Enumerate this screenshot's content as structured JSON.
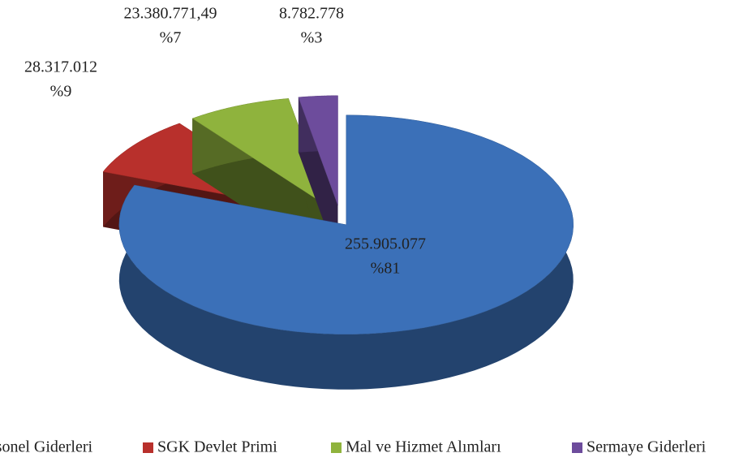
{
  "chart_data": {
    "type": "pie",
    "categories": [
      "Personel Giderleri",
      "SGK Devlet Primi",
      "Mal ve Hizmet Alımları",
      "Sermaye Giderleri"
    ],
    "values": [
      255905077,
      28317012,
      23380771.49,
      8782778
    ],
    "value_labels": [
      "255.905.077",
      "28.317.012",
      "23.380.771,49",
      "8.782.778"
    ],
    "percents": [
      81,
      9,
      7,
      3
    ],
    "percent_labels": [
      "%81",
      "%9",
      "%7",
      "%3"
    ],
    "colors": [
      "#3b70b8",
      "#b8302c",
      "#8fb33d",
      "#6d4c9c"
    ],
    "legend": "bottom"
  }
}
